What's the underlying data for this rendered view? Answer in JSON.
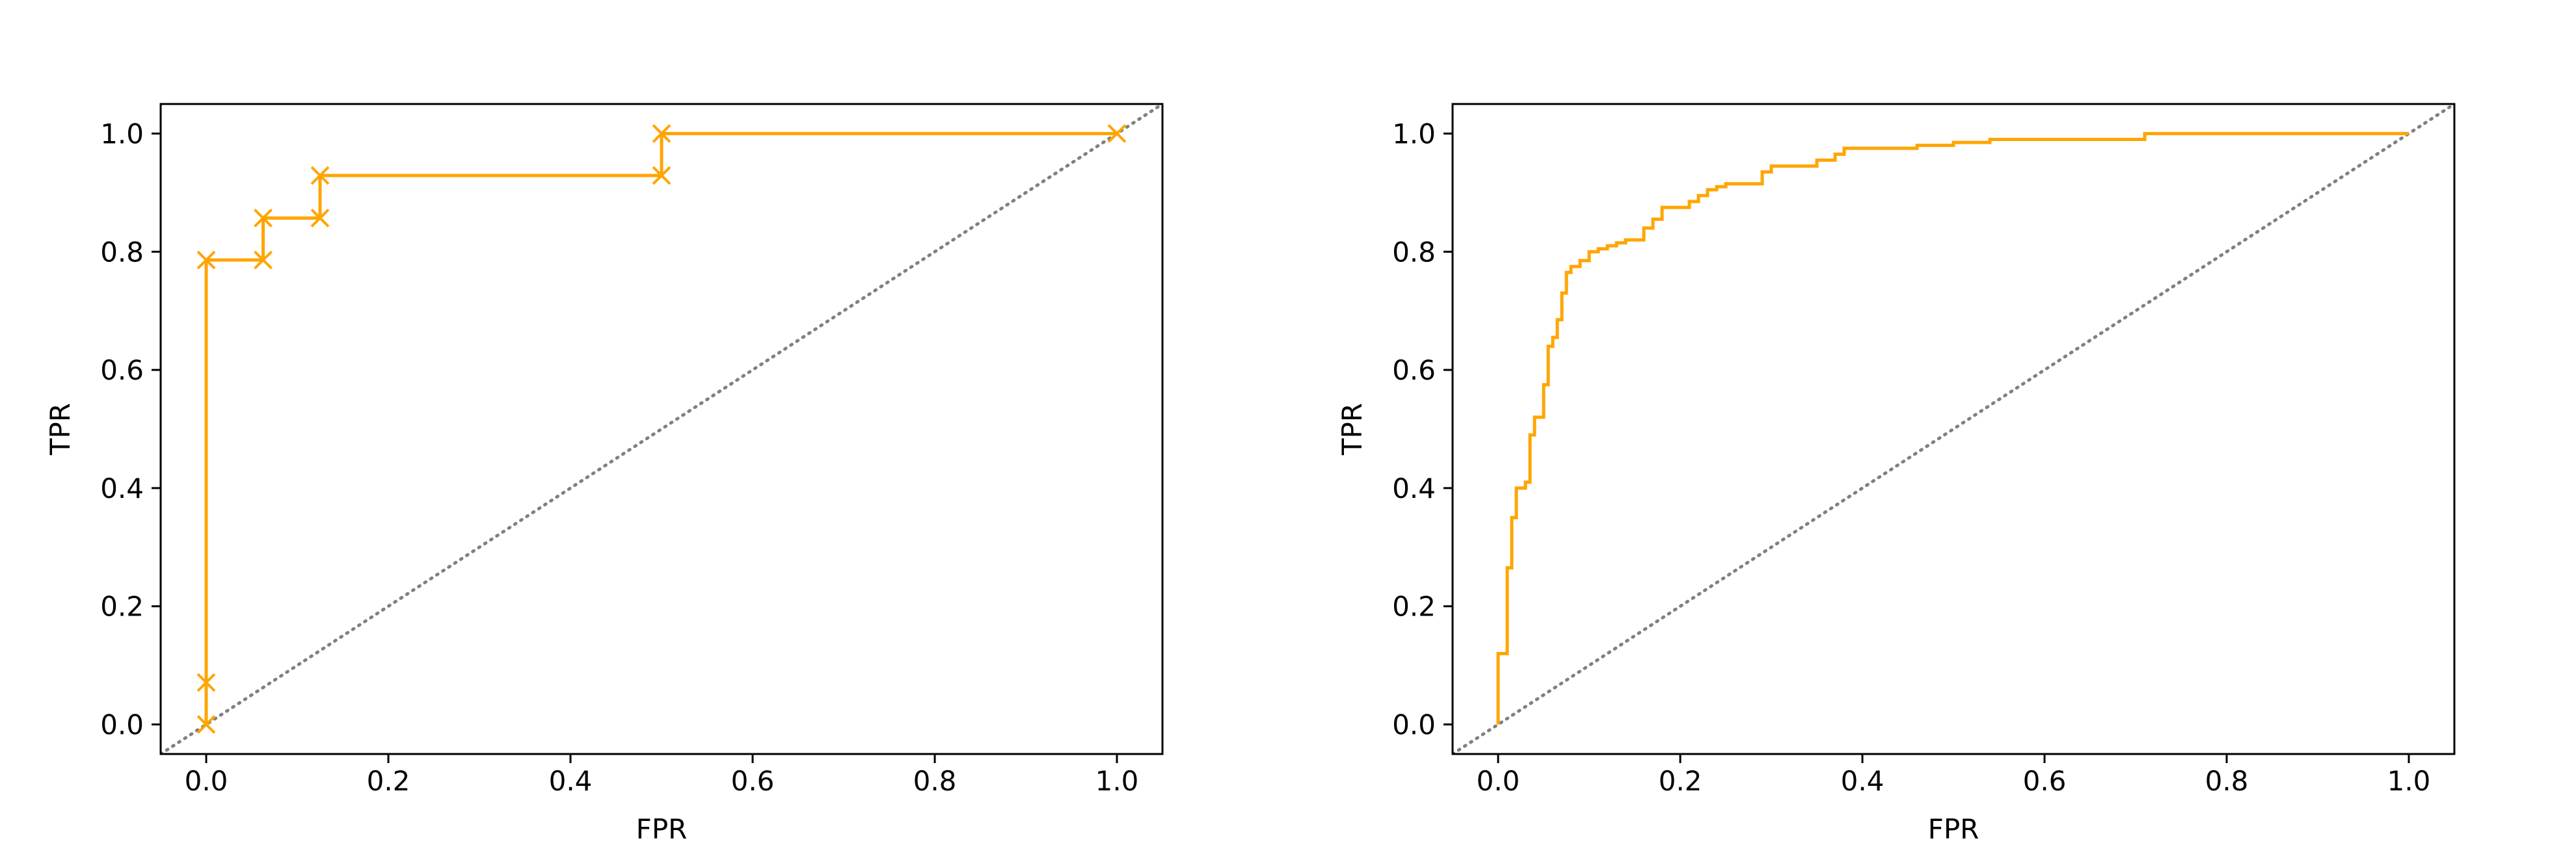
{
  "colors": {
    "curve": "#ffa500",
    "diagonal": "#808080",
    "axes": "#000000",
    "background": "#ffffff"
  },
  "chart_data": [
    {
      "type": "line",
      "title": "",
      "xlabel": "FPR",
      "ylabel": "TPR",
      "xlim": [
        -0.05,
        1.05
      ],
      "ylim": [
        -0.05,
        1.05
      ],
      "xticks": [
        "0.0",
        "0.2",
        "0.4",
        "0.6",
        "0.8",
        "1.0"
      ],
      "yticks": [
        "0.0",
        "0.2",
        "0.4",
        "0.6",
        "0.8",
        "1.0"
      ],
      "grid": false,
      "legend": "none",
      "markers": true,
      "marker_style": "x",
      "step": "vertical-then-horizontal",
      "diagonal": "dotted chance line",
      "series": [
        {
          "x": [
            0.0,
            0.0,
            0.0,
            0.0625,
            0.0625,
            0.125,
            0.125,
            0.5,
            0.5,
            1.0
          ],
          "y": [
            0.0,
            0.071,
            0.786,
            0.786,
            0.857,
            0.857,
            0.929,
            0.929,
            1.0,
            1.0
          ]
        }
      ]
    },
    {
      "type": "line",
      "title": "",
      "xlabel": "FPR",
      "ylabel": "TPR",
      "xlim": [
        -0.05,
        1.05
      ],
      "ylim": [
        -0.05,
        1.05
      ],
      "xticks": [
        "0.0",
        "0.2",
        "0.4",
        "0.6",
        "0.8",
        "1.0"
      ],
      "yticks": [
        "0.0",
        "0.2",
        "0.4",
        "0.6",
        "0.8",
        "1.0"
      ],
      "grid": false,
      "legend": "none",
      "markers": false,
      "step": "vertical-then-horizontal",
      "diagonal": "dotted chance line",
      "series": [
        {
          "x": [
            0.0,
            0.0,
            0.01,
            0.01,
            0.015,
            0.015,
            0.02,
            0.02,
            0.03,
            0.03,
            0.035,
            0.035,
            0.04,
            0.04,
            0.05,
            0.05,
            0.055,
            0.055,
            0.06,
            0.06,
            0.065,
            0.065,
            0.07,
            0.07,
            0.075,
            0.075,
            0.08,
            0.08,
            0.09,
            0.09,
            0.1,
            0.1,
            0.11,
            0.11,
            0.12,
            0.12,
            0.13,
            0.13,
            0.14,
            0.14,
            0.16,
            0.16,
            0.17,
            0.17,
            0.18,
            0.18,
            0.21,
            0.21,
            0.22,
            0.22,
            0.23,
            0.23,
            0.24,
            0.24,
            0.25,
            0.25,
            0.29,
            0.29,
            0.3,
            0.3,
            0.35,
            0.35,
            0.37,
            0.37,
            0.38,
            0.38,
            0.46,
            0.46,
            0.5,
            0.5,
            0.54,
            0.54,
            0.71,
            0.71,
            1.0
          ],
          "y": [
            0.0,
            0.12,
            0.12,
            0.265,
            0.265,
            0.35,
            0.35,
            0.4,
            0.4,
            0.41,
            0.41,
            0.49,
            0.49,
            0.52,
            0.52,
            0.575,
            0.575,
            0.64,
            0.64,
            0.655,
            0.655,
            0.685,
            0.685,
            0.73,
            0.73,
            0.765,
            0.765,
            0.775,
            0.775,
            0.785,
            0.785,
            0.8,
            0.8,
            0.805,
            0.805,
            0.81,
            0.81,
            0.815,
            0.815,
            0.82,
            0.82,
            0.84,
            0.84,
            0.855,
            0.855,
            0.875,
            0.875,
            0.885,
            0.885,
            0.895,
            0.895,
            0.905,
            0.905,
            0.91,
            0.91,
            0.915,
            0.915,
            0.935,
            0.935,
            0.945,
            0.945,
            0.955,
            0.955,
            0.965,
            0.965,
            0.975,
            0.975,
            0.98,
            0.98,
            0.985,
            0.985,
            0.99,
            0.99,
            1.0,
            1.0
          ]
        }
      ]
    }
  ]
}
